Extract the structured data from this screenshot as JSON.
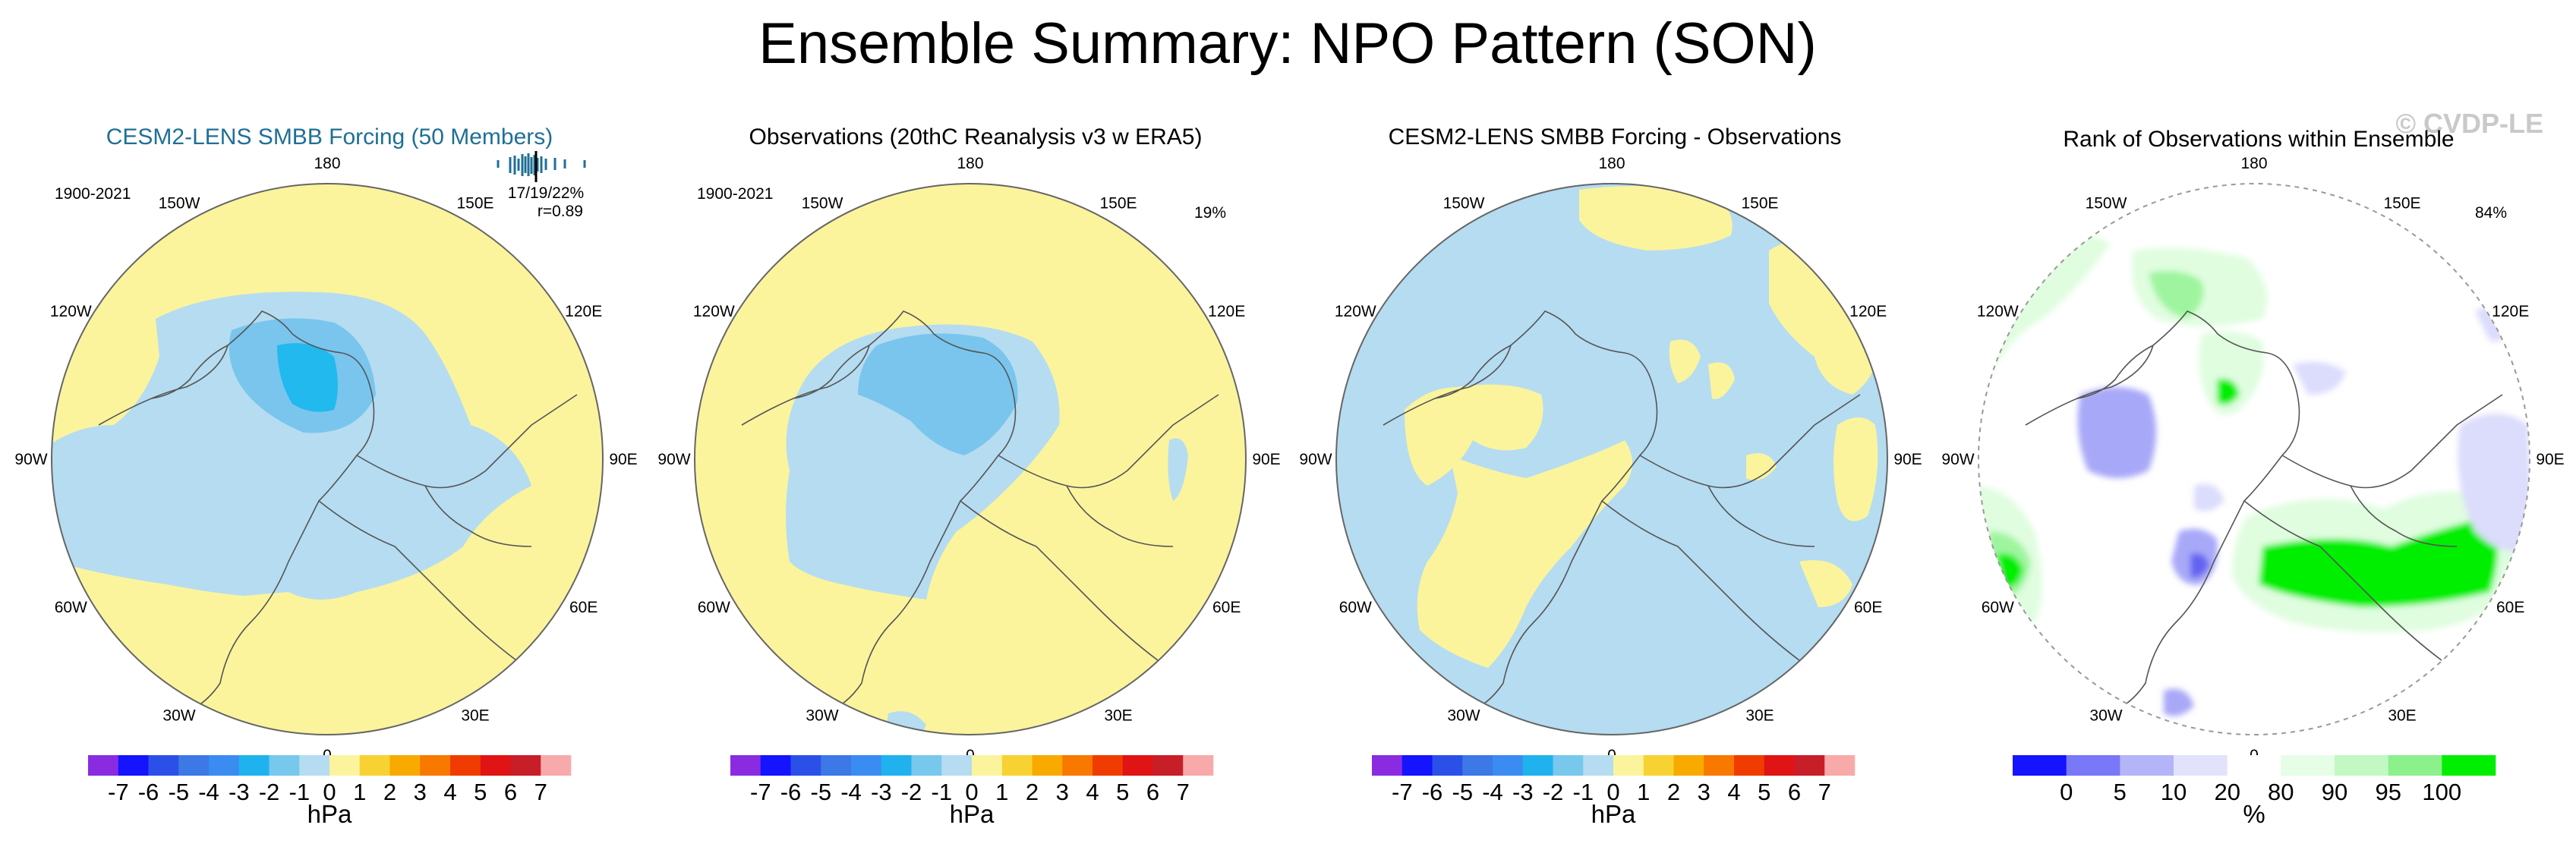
{
  "page": {
    "title": "Ensemble Summary: NPO Pattern (SON)",
    "watermark": "© CVDP-LE"
  },
  "colors": {
    "yellow": "#fbf49d",
    "lightblue": "#b5dcf1",
    "blue2": "#79c5ee",
    "blue3": "#21b9ee",
    "rank_white": "#ffffff",
    "rank_green1": "#e0fde0",
    "rank_green2": "#9ff59f",
    "rank_green3": "#00ee00",
    "rank_blue1": "#dcdcfc",
    "rank_blue2": "#a8a8f8",
    "rank_blue3": "#6464f0",
    "title_teal": "#1f6f96"
  },
  "lon_labels": [
    "180",
    "150E",
    "120E",
    "90E",
    "60E",
    "30E",
    "0",
    "30W",
    "60W",
    "90W",
    "120W",
    "150W"
  ],
  "chart_data": [
    {
      "type": "map",
      "title": "CESM2-LENS SMBB Forcing (50 Members)",
      "period": "1900-2021",
      "stats": "17/19/22%",
      "correlation": "r=0.89",
      "colorbar": {
        "unit": "hPa",
        "ticks": [
          "-7",
          "-6",
          "-5",
          "-4",
          "-3",
          "-2",
          "-1",
          "0",
          "1",
          "2",
          "3",
          "4",
          "5",
          "6",
          "7"
        ],
        "colors": [
          "#8a2be2",
          "#1414ff",
          "#2b50e8",
          "#3c78e6",
          "#3a8cf0",
          "#20b2ee",
          "#78c8ee",
          "#b5dcf1",
          "#fbf49d",
          "#f8d232",
          "#f8aa00",
          "#f87800",
          "#f03c00",
          "#e01414",
          "#c81e28",
          "#f8aaaa"
        ]
      }
    },
    {
      "type": "map",
      "title": "Observations (20thC Reanalysis v3 w ERA5)",
      "period": "1900-2021",
      "stats": "19%",
      "colorbar": {
        "unit": "hPa",
        "ticks": [
          "-7",
          "-6",
          "-5",
          "-4",
          "-3",
          "-2",
          "-1",
          "0",
          "1",
          "2",
          "3",
          "4",
          "5",
          "6",
          "7"
        ],
        "colors": [
          "#8a2be2",
          "#1414ff",
          "#2b50e8",
          "#3c78e6",
          "#3a8cf0",
          "#20b2ee",
          "#78c8ee",
          "#b5dcf1",
          "#fbf49d",
          "#f8d232",
          "#f8aa00",
          "#f87800",
          "#f03c00",
          "#e01414",
          "#c81e28",
          "#f8aaaa"
        ]
      }
    },
    {
      "type": "map",
      "title": "CESM2-LENS SMBB Forcing - Observations",
      "colorbar": {
        "unit": "hPa",
        "ticks": [
          "-7",
          "-6",
          "-5",
          "-4",
          "-3",
          "-2",
          "-1",
          "0",
          "1",
          "2",
          "3",
          "4",
          "5",
          "6",
          "7"
        ],
        "colors": [
          "#8a2be2",
          "#1414ff",
          "#2b50e8",
          "#3c78e6",
          "#3a8cf0",
          "#20b2ee",
          "#78c8ee",
          "#b5dcf1",
          "#fbf49d",
          "#f8d232",
          "#f8aa00",
          "#f87800",
          "#f03c00",
          "#e01414",
          "#c81e28",
          "#f8aaaa"
        ]
      }
    },
    {
      "type": "map",
      "title": "Rank of Observations within Ensemble",
      "stats": "84%",
      "colorbar": {
        "unit": "%",
        "ticks": [
          "0",
          "5",
          "10",
          "20",
          "80",
          "90",
          "95",
          "100"
        ],
        "colors": [
          "#1414ff",
          "#7878f8",
          "#b4b4f8",
          "#e2e2fc",
          "#ffffff",
          "#e6fde6",
          "#c2f8c2",
          "#8cf08c",
          "#00ee00"
        ]
      }
    }
  ]
}
